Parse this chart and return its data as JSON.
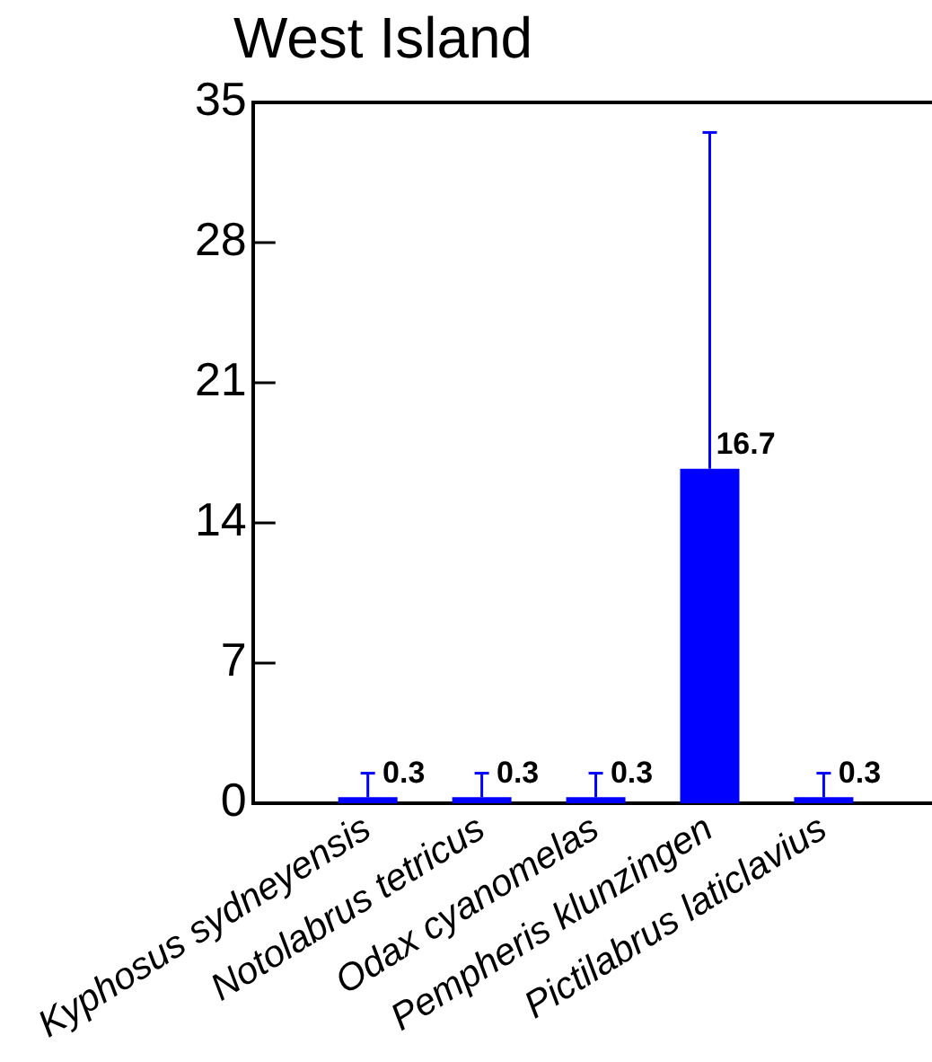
{
  "chart_data": {
    "type": "bar",
    "title": "West Island",
    "categories": [
      "Kyphosus sydneyensis",
      "Notolabrus tetricus",
      "Odax cyanomelas",
      "Pempheris klunzingen",
      "Pictilabrus laticlavius"
    ],
    "values": [
      0.3,
      0.3,
      0.3,
      16.7,
      0.3
    ],
    "color": "#0000ff",
    "errors": [
      [
        0.3,
        1.5
      ],
      [
        0.3,
        1.5
      ],
      [
        0.3,
        1.5
      ],
      [
        16.7,
        33.5
      ],
      [
        0.3,
        1.5
      ]
    ],
    "ylim": [
      0,
      35
    ],
    "yticks": [
      0,
      7,
      14,
      21,
      28,
      35
    ],
    "grid": false,
    "data_labels": true
  }
}
